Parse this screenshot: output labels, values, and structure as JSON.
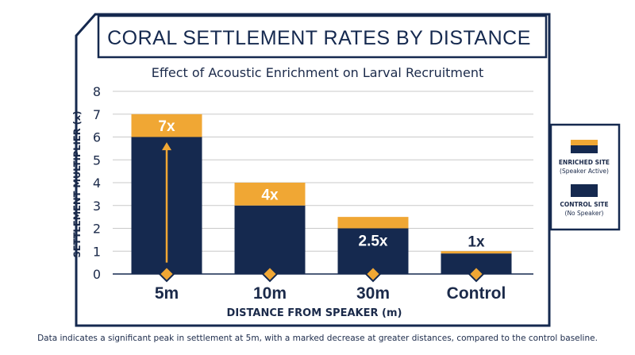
{
  "colors": {
    "navy": "#15294f",
    "gold": "#f0a734",
    "grid": "#c9c9c9",
    "text": "#1b2a4a"
  },
  "chart_data": {
    "type": "bar",
    "title": "CORAL SETTLEMENT RATES BY DISTANCE",
    "subtitle": "Effect of Acoustic Enrichment on Larval Recruitment",
    "xlabel": "DISTANCE FROM SPEAKER (m)",
    "ylabel": "SETTLEMENT MULTIPLIER (x)",
    "ylim": [
      0,
      8
    ],
    "yticks": [
      "0",
      "1",
      "2",
      "3",
      "4",
      "5",
      "6",
      "7",
      "8"
    ],
    "grid": true,
    "stacked": true,
    "categories": [
      "5m",
      "10m",
      "30m",
      "Control"
    ],
    "series": [
      {
        "name": "CONTROL SITE",
        "values": [
          6,
          3,
          2,
          0.9
        ]
      },
      {
        "name": "ENRICHED SITE",
        "values": [
          1,
          1,
          0.5,
          0.1
        ]
      }
    ],
    "totals": [
      7,
      4,
      2.5,
      1
    ],
    "data_labels": [
      "7x",
      "4x",
      "2.5x",
      "1x"
    ],
    "legend": {
      "position": "right",
      "items": [
        {
          "title": "ENRICHED SITE",
          "note": "(Speaker Active)"
        },
        {
          "title": "CONTROL SITE",
          "note": "(No Speaker)"
        }
      ]
    },
    "annotation": {
      "type": "arrow",
      "category": "5m",
      "from": 0.5,
      "to": 5.7
    }
  },
  "caption": "Data indicates a significant peak in settlement at 5m, with a marked decrease at greater distances, compared to the control baseline."
}
